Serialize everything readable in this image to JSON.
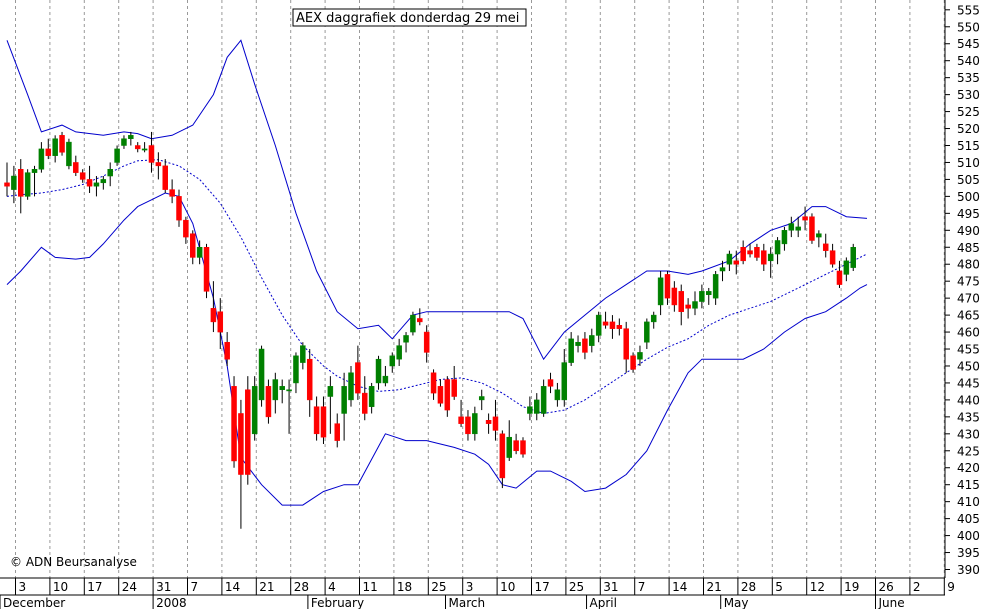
{
  "chart_data": {
    "type": "candlestick",
    "title": "AEX daggrafiek donderdag 29 mei",
    "copyright": "© ADN Beursanalyse",
    "ylim": [
      386,
      559
    ],
    "y_ticks": [
      390,
      395,
      400,
      405,
      410,
      415,
      420,
      425,
      430,
      435,
      440,
      445,
      450,
      455,
      460,
      465,
      470,
      475,
      480,
      485,
      490,
      495,
      500,
      505,
      510,
      515,
      520,
      525,
      530,
      535,
      540,
      545,
      550,
      555
    ],
    "x_day_labels": [
      "3",
      "10",
      "17",
      "24",
      "31",
      "7",
      "14",
      "21",
      "28",
      "4",
      "11",
      "18",
      "25",
      "3",
      "10",
      "17",
      "25",
      "31",
      "7",
      "14",
      "21",
      "28",
      "5",
      "12",
      "19",
      "26",
      "2",
      "9"
    ],
    "x_month_labels": [
      "December",
      "2008",
      "February",
      "March",
      "April",
      "May",
      "June"
    ],
    "grid": true,
    "colors": {
      "up": "#008000",
      "down": "#ff0000",
      "band": "#0000cc",
      "ma": "#0000cc",
      "grid": "#999999"
    },
    "candles": [
      {
        "o": 504,
        "h": 510,
        "l": 500,
        "c": 503
      },
      {
        "o": 502,
        "h": 509,
        "l": 498,
        "c": 506
      },
      {
        "o": 508,
        "h": 511,
        "l": 495,
        "c": 500
      },
      {
        "o": 500,
        "h": 508,
        "l": 499,
        "c": 507
      },
      {
        "o": 507,
        "h": 509,
        "l": 500,
        "c": 508
      },
      {
        "o": 508,
        "h": 516,
        "l": 507,
        "c": 514
      },
      {
        "o": 514,
        "h": 517,
        "l": 511,
        "c": 512
      },
      {
        "o": 512,
        "h": 518,
        "l": 510,
        "c": 517
      },
      {
        "o": 518,
        "h": 519,
        "l": 512,
        "c": 513
      },
      {
        "o": 509,
        "h": 517,
        "l": 508,
        "c": 516
      },
      {
        "o": 510,
        "h": 512,
        "l": 506,
        "c": 507
      },
      {
        "o": 507,
        "h": 508,
        "l": 504,
        "c": 505
      },
      {
        "o": 505,
        "h": 509,
        "l": 501,
        "c": 503
      },
      {
        "o": 503,
        "h": 506,
        "l": 500,
        "c": 504
      },
      {
        "o": 504,
        "h": 506,
        "l": 502,
        "c": 505
      },
      {
        "o": 506,
        "h": 510,
        "l": 503,
        "c": 508
      },
      {
        "o": 510,
        "h": 515,
        "l": 509,
        "c": 514
      },
      {
        "o": 515,
        "h": 518,
        "l": 514,
        "c": 517
      },
      {
        "o": 517,
        "h": 519,
        "l": 515,
        "c": 518
      },
      {
        "o": 515,
        "h": 516,
        "l": 513,
        "c": 514
      },
      {
        "o": 514,
        "h": 516,
        "l": 513,
        "c": 514
      },
      {
        "o": 515,
        "h": 519,
        "l": 507,
        "c": 510
      },
      {
        "o": 510,
        "h": 513,
        "l": 505,
        "c": 509
      },
      {
        "o": 509,
        "h": 511,
        "l": 501,
        "c": 502
      },
      {
        "o": 502,
        "h": 505,
        "l": 498,
        "c": 500
      },
      {
        "o": 500,
        "h": 502,
        "l": 491,
        "c": 493
      },
      {
        "o": 493,
        "h": 494,
        "l": 486,
        "c": 488
      },
      {
        "o": 489,
        "h": 490,
        "l": 480,
        "c": 482
      },
      {
        "o": 482,
        "h": 487,
        "l": 480,
        "c": 485
      },
      {
        "o": 485,
        "h": 486,
        "l": 470,
        "c": 472
      },
      {
        "o": 467,
        "h": 475,
        "l": 460,
        "c": 463
      },
      {
        "o": 466,
        "h": 470,
        "l": 455,
        "c": 460
      },
      {
        "o": 457,
        "h": 460,
        "l": 450,
        "c": 452
      },
      {
        "o": 444,
        "h": 447,
        "l": 420,
        "c": 422
      },
      {
        "o": 436,
        "h": 440,
        "l": 402,
        "c": 418
      },
      {
        "o": 443,
        "h": 447,
        "l": 415,
        "c": 418
      },
      {
        "o": 430,
        "h": 447,
        "l": 428,
        "c": 444
      },
      {
        "o": 440,
        "h": 456,
        "l": 438,
        "c": 455
      },
      {
        "o": 444,
        "h": 446,
        "l": 433,
        "c": 435
      },
      {
        "o": 440,
        "h": 448,
        "l": 436,
        "c": 446
      },
      {
        "o": 443,
        "h": 446,
        "l": 439,
        "c": 444
      },
      {
        "o": 443,
        "h": 446,
        "l": 430,
        "c": 443
      },
      {
        "o": 445,
        "h": 454,
        "l": 442,
        "c": 453
      },
      {
        "o": 451,
        "h": 457,
        "l": 449,
        "c": 456
      },
      {
        "o": 452,
        "h": 455,
        "l": 435,
        "c": 440
      },
      {
        "o": 438,
        "h": 441,
        "l": 428,
        "c": 430
      },
      {
        "o": 438,
        "h": 441,
        "l": 427,
        "c": 429
      },
      {
        "o": 441,
        "h": 447,
        "l": 430,
        "c": 444
      },
      {
        "o": 433,
        "h": 436,
        "l": 426,
        "c": 428
      },
      {
        "o": 436,
        "h": 448,
        "l": 428,
        "c": 444
      },
      {
        "o": 440,
        "h": 450,
        "l": 438,
        "c": 448
      },
      {
        "o": 451,
        "h": 456,
        "l": 440,
        "c": 442
      },
      {
        "o": 442,
        "h": 447,
        "l": 434,
        "c": 436
      },
      {
        "o": 438,
        "h": 445,
        "l": 436,
        "c": 444
      },
      {
        "o": 445,
        "h": 453,
        "l": 443,
        "c": 452
      },
      {
        "o": 445,
        "h": 450,
        "l": 444,
        "c": 447
      },
      {
        "o": 450,
        "h": 454,
        "l": 448,
        "c": 453
      },
      {
        "o": 452,
        "h": 458,
        "l": 450,
        "c": 456
      },
      {
        "o": 457,
        "h": 460,
        "l": 454,
        "c": 459
      },
      {
        "o": 460,
        "h": 466,
        "l": 459,
        "c": 465
      },
      {
        "o": 464,
        "h": 467,
        "l": 462,
        "c": 463
      },
      {
        "o": 460,
        "h": 462,
        "l": 451,
        "c": 454
      },
      {
        "o": 448,
        "h": 449,
        "l": 440,
        "c": 442
      },
      {
        "o": 444,
        "h": 446,
        "l": 438,
        "c": 439
      },
      {
        "o": 446,
        "h": 447,
        "l": 435,
        "c": 437
      },
      {
        "o": 446,
        "h": 450,
        "l": 440,
        "c": 441
      },
      {
        "o": 435,
        "h": 440,
        "l": 432,
        "c": 433
      },
      {
        "o": 435,
        "h": 437,
        "l": 428,
        "c": 430
      },
      {
        "o": 430,
        "h": 438,
        "l": 428,
        "c": 436
      },
      {
        "o": 440,
        "h": 443,
        "l": 437,
        "c": 441
      },
      {
        "o": 434,
        "h": 436,
        "l": 430,
        "c": 433
      },
      {
        "o": 435,
        "h": 440,
        "l": 428,
        "c": 431
      },
      {
        "o": 430,
        "h": 431,
        "l": 414,
        "c": 417
      },
      {
        "o": 423,
        "h": 434,
        "l": 422,
        "c": 429
      },
      {
        "o": 428,
        "h": 430,
        "l": 424,
        "c": 425
      },
      {
        "o": 428,
        "h": 429,
        "l": 423,
        "c": 424
      },
      {
        "o": 436,
        "h": 441,
        "l": 434,
        "c": 438
      },
      {
        "o": 436,
        "h": 442,
        "l": 434,
        "c": 440
      },
      {
        "o": 436,
        "h": 446,
        "l": 435,
        "c": 444
      },
      {
        "o": 446,
        "h": 448,
        "l": 442,
        "c": 444
      },
      {
        "o": 440,
        "h": 445,
        "l": 438,
        "c": 443
      },
      {
        "o": 440,
        "h": 455,
        "l": 438,
        "c": 451
      },
      {
        "o": 451,
        "h": 460,
        "l": 450,
        "c": 458
      },
      {
        "o": 456,
        "h": 459,
        "l": 454,
        "c": 457
      },
      {
        "o": 458,
        "h": 460,
        "l": 452,
        "c": 454
      },
      {
        "o": 456,
        "h": 461,
        "l": 454,
        "c": 459
      },
      {
        "o": 459,
        "h": 466,
        "l": 457,
        "c": 465
      },
      {
        "o": 463,
        "h": 466,
        "l": 461,
        "c": 462
      },
      {
        "o": 463,
        "h": 465,
        "l": 458,
        "c": 461
      },
      {
        "o": 462,
        "h": 464,
        "l": 459,
        "c": 461
      },
      {
        "o": 461,
        "h": 463,
        "l": 448,
        "c": 452
      },
      {
        "o": 453,
        "h": 454,
        "l": 448,
        "c": 449
      },
      {
        "o": 452,
        "h": 456,
        "l": 450,
        "c": 454
      },
      {
        "o": 457,
        "h": 464,
        "l": 455,
        "c": 463
      },
      {
        "o": 463,
        "h": 466,
        "l": 461,
        "c": 465
      },
      {
        "o": 468,
        "h": 478,
        "l": 465,
        "c": 476
      },
      {
        "o": 477,
        "h": 478,
        "l": 468,
        "c": 470
      },
      {
        "o": 473,
        "h": 475,
        "l": 466,
        "c": 468
      },
      {
        "o": 472,
        "h": 474,
        "l": 462,
        "c": 466
      },
      {
        "o": 468,
        "h": 470,
        "l": 464,
        "c": 467
      },
      {
        "o": 467,
        "h": 472,
        "l": 465,
        "c": 469
      },
      {
        "o": 469,
        "h": 474,
        "l": 467,
        "c": 472
      },
      {
        "o": 471,
        "h": 473,
        "l": 468,
        "c": 472
      },
      {
        "o": 470,
        "h": 478,
        "l": 468,
        "c": 477
      },
      {
        "o": 478,
        "h": 481,
        "l": 475,
        "c": 479
      },
      {
        "o": 480,
        "h": 484,
        "l": 478,
        "c": 483
      },
      {
        "o": 481,
        "h": 484,
        "l": 477,
        "c": 480
      },
      {
        "o": 485,
        "h": 487,
        "l": 480,
        "c": 481
      },
      {
        "o": 484,
        "h": 486,
        "l": 482,
        "c": 483
      },
      {
        "o": 485,
        "h": 486,
        "l": 481,
        "c": 482
      },
      {
        "o": 484,
        "h": 486,
        "l": 478,
        "c": 480
      },
      {
        "o": 481,
        "h": 485,
        "l": 476,
        "c": 483
      },
      {
        "o": 483,
        "h": 488,
        "l": 480,
        "c": 487
      },
      {
        "o": 486,
        "h": 491,
        "l": 484,
        "c": 490
      },
      {
        "o": 490,
        "h": 494,
        "l": 488,
        "c": 492
      },
      {
        "o": 490,
        "h": 494,
        "l": 488,
        "c": 491
      },
      {
        "o": 494,
        "h": 497,
        "l": 490,
        "c": 493
      },
      {
        "o": 494,
        "h": 495,
        "l": 486,
        "c": 487
      },
      {
        "o": 488,
        "h": 490,
        "l": 485,
        "c": 489
      },
      {
        "o": 486,
        "h": 489,
        "l": 482,
        "c": 484
      },
      {
        "o": 484,
        "h": 486,
        "l": 479,
        "c": 480
      },
      {
        "o": 478,
        "h": 481,
        "l": 473,
        "c": 474
      },
      {
        "o": 477,
        "h": 482,
        "l": 475,
        "c": 481
      },
      {
        "o": 479,
        "h": 486,
        "l": 478,
        "c": 485
      }
    ],
    "ma_20": [
      [
        0,
        500
      ],
      [
        2,
        500.5
      ],
      [
        5,
        501
      ],
      [
        8,
        502
      ],
      [
        11,
        503.5
      ],
      [
        14,
        506
      ],
      [
        17,
        509
      ],
      [
        19,
        510.5
      ],
      [
        22,
        510.8
      ],
      [
        25,
        509
      ],
      [
        28,
        505
      ],
      [
        31,
        498
      ],
      [
        34,
        488
      ],
      [
        37,
        476
      ],
      [
        40,
        465
      ],
      [
        43,
        456
      ],
      [
        46,
        450
      ],
      [
        48,
        447
      ],
      [
        51,
        444
      ],
      [
        54,
        442.5
      ],
      [
        57,
        443
      ],
      [
        60,
        444.5
      ],
      [
        63,
        446
      ],
      [
        66,
        446.5
      ],
      [
        69,
        445
      ],
      [
        72,
        442
      ],
      [
        75,
        438
      ],
      [
        78,
        436
      ],
      [
        81,
        437
      ],
      [
        84,
        440
      ],
      [
        87,
        444
      ],
      [
        90,
        448
      ],
      [
        93,
        452
      ],
      [
        96,
        455.5
      ],
      [
        99,
        458
      ],
      [
        102,
        462
      ],
      [
        105,
        465
      ],
      [
        108,
        467
      ],
      [
        111,
        469
      ],
      [
        114,
        472
      ],
      [
        117,
        475
      ],
      [
        120,
        478
      ],
      [
        123,
        481
      ],
      [
        125,
        483
      ]
    ],
    "upper_band": [
      [
        0,
        546
      ],
      [
        3,
        530
      ],
      [
        5,
        519
      ],
      [
        8,
        521
      ],
      [
        10,
        519
      ],
      [
        14,
        518
      ],
      [
        17,
        519
      ],
      [
        19,
        518.5
      ],
      [
        21,
        517
      ],
      [
        24,
        518
      ],
      [
        27,
        521
      ],
      [
        30,
        530
      ],
      [
        32,
        541
      ],
      [
        34,
        546
      ],
      [
        36,
        533
      ],
      [
        39,
        515
      ],
      [
        42,
        495
      ],
      [
        45,
        478
      ],
      [
        48,
        466
      ],
      [
        51,
        461
      ],
      [
        54,
        462
      ],
      [
        56,
        458
      ],
      [
        59,
        465
      ],
      [
        61,
        466
      ],
      [
        65,
        466
      ],
      [
        70,
        466
      ],
      [
        73,
        466
      ],
      [
        75,
        464
      ],
      [
        78,
        452
      ],
      [
        81,
        460
      ],
      [
        84,
        465
      ],
      [
        87,
        470
      ],
      [
        90,
        474
      ],
      [
        93,
        478
      ],
      [
        96,
        478
      ],
      [
        99,
        477
      ],
      [
        101,
        478
      ],
      [
        105,
        481
      ],
      [
        108,
        486
      ],
      [
        111,
        490
      ],
      [
        114,
        492
      ],
      [
        117,
        497
      ],
      [
        119,
        497
      ],
      [
        122,
        494
      ],
      [
        125,
        493.5
      ]
    ],
    "lower_band": [
      [
        0,
        474
      ],
      [
        2,
        478
      ],
      [
        5,
        485
      ],
      [
        7,
        482
      ],
      [
        10,
        481.5
      ],
      [
        12,
        482
      ],
      [
        14,
        486
      ],
      [
        17,
        493
      ],
      [
        19,
        497
      ],
      [
        21,
        499
      ],
      [
        23,
        501
      ],
      [
        25,
        500
      ],
      [
        27,
        492
      ],
      [
        30,
        470
      ],
      [
        32,
        450
      ],
      [
        34,
        423
      ],
      [
        37,
        415
      ],
      [
        40,
        409
      ],
      [
        43,
        409
      ],
      [
        46,
        413
      ],
      [
        49,
        415
      ],
      [
        51,
        415
      ],
      [
        55,
        430
      ],
      [
        58,
        428
      ],
      [
        61,
        428
      ],
      [
        63,
        427
      ],
      [
        65,
        426
      ],
      [
        68,
        424
      ],
      [
        70,
        421
      ],
      [
        72,
        415
      ],
      [
        74,
        414
      ],
      [
        77,
        419
      ],
      [
        79,
        419
      ],
      [
        82,
        416
      ],
      [
        84,
        413
      ],
      [
        87,
        414
      ],
      [
        90,
        418
      ],
      [
        93,
        425
      ],
      [
        96,
        437
      ],
      [
        99,
        448
      ],
      [
        101,
        452
      ],
      [
        105,
        452
      ],
      [
        107,
        452
      ],
      [
        110,
        455
      ],
      [
        113,
        460
      ],
      [
        116,
        464
      ],
      [
        119,
        466
      ],
      [
        122,
        470
      ],
      [
        124,
        473
      ],
      [
        125,
        474
      ]
    ]
  }
}
